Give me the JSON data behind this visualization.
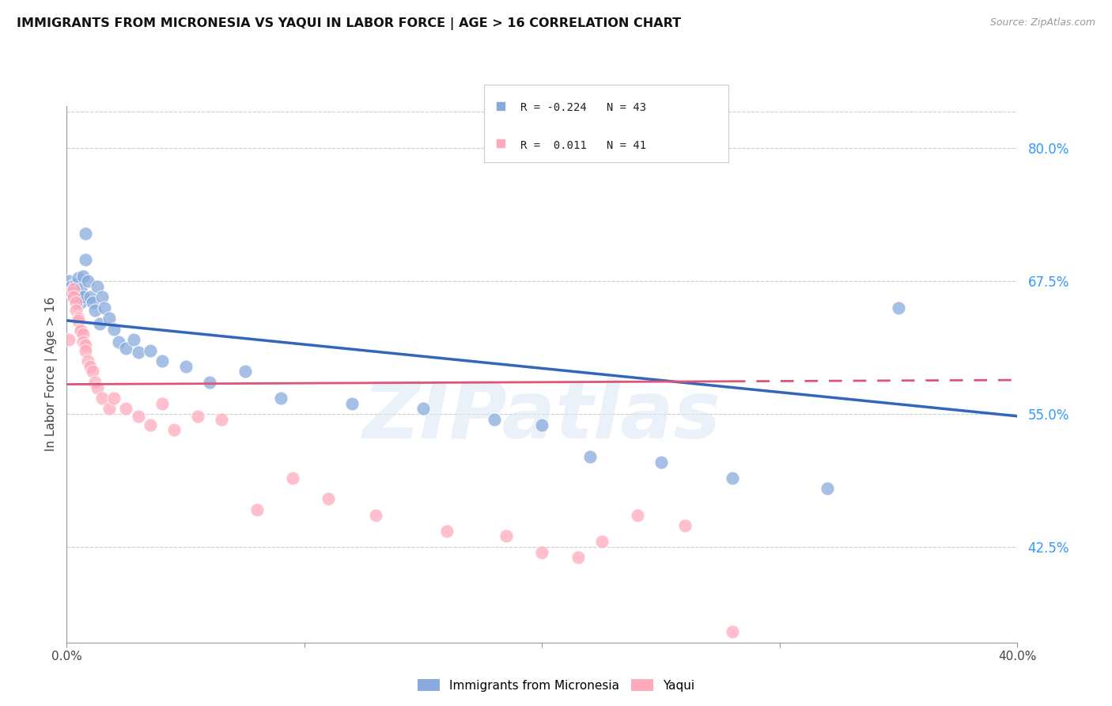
{
  "title": "IMMIGRANTS FROM MICRONESIA VS YAQUI IN LABOR FORCE | AGE > 16 CORRELATION CHART",
  "source": "Source: ZipAtlas.com",
  "ylabel": "In Labor Force | Age > 16",
  "xlim": [
    0.0,
    0.4
  ],
  "ylim": [
    0.335,
    0.84
  ],
  "ytick_labels_right": [
    "80.0%",
    "67.5%",
    "55.0%",
    "42.5%"
  ],
  "ytick_values_right": [
    0.8,
    0.675,
    0.55,
    0.425
  ],
  "blue_label": "Immigrants from Micronesia",
  "pink_label": "Yaqui",
  "blue_R": -0.224,
  "blue_N": 43,
  "pink_R": 0.011,
  "pink_N": 41,
  "blue_color": "#88aadd",
  "pink_color": "#ffaabb",
  "blue_line_color": "#3366bb",
  "pink_line_color": "#dd5577",
  "watermark": "ZIPatlas",
  "blue_scatter_x": [
    0.001,
    0.002,
    0.003,
    0.003,
    0.004,
    0.004,
    0.005,
    0.005,
    0.006,
    0.006,
    0.007,
    0.007,
    0.008,
    0.008,
    0.009,
    0.01,
    0.011,
    0.012,
    0.013,
    0.014,
    0.015,
    0.016,
    0.018,
    0.02,
    0.022,
    0.025,
    0.028,
    0.03,
    0.035,
    0.04,
    0.05,
    0.06,
    0.075,
    0.09,
    0.12,
    0.15,
    0.18,
    0.2,
    0.22,
    0.25,
    0.28,
    0.32,
    0.35
  ],
  "blue_scatter_y": [
    0.675,
    0.67,
    0.668,
    0.66,
    0.672,
    0.665,
    0.678,
    0.658,
    0.668,
    0.655,
    0.68,
    0.66,
    0.72,
    0.695,
    0.675,
    0.66,
    0.655,
    0.648,
    0.67,
    0.635,
    0.66,
    0.65,
    0.64,
    0.63,
    0.618,
    0.612,
    0.62,
    0.608,
    0.61,
    0.6,
    0.595,
    0.58,
    0.59,
    0.565,
    0.56,
    0.555,
    0.545,
    0.54,
    0.51,
    0.505,
    0.49,
    0.48,
    0.65
  ],
  "pink_scatter_x": [
    0.001,
    0.002,
    0.003,
    0.003,
    0.004,
    0.004,
    0.005,
    0.005,
    0.006,
    0.006,
    0.007,
    0.007,
    0.008,
    0.008,
    0.009,
    0.01,
    0.011,
    0.012,
    0.013,
    0.015,
    0.018,
    0.02,
    0.025,
    0.03,
    0.035,
    0.04,
    0.045,
    0.055,
    0.065,
    0.08,
    0.095,
    0.11,
    0.13,
    0.16,
    0.185,
    0.2,
    0.215,
    0.225,
    0.24,
    0.26,
    0.28
  ],
  "pink_scatter_y": [
    0.62,
    0.665,
    0.668,
    0.66,
    0.655,
    0.648,
    0.64,
    0.638,
    0.63,
    0.628,
    0.625,
    0.618,
    0.615,
    0.61,
    0.6,
    0.595,
    0.59,
    0.58,
    0.575,
    0.565,
    0.555,
    0.565,
    0.555,
    0.548,
    0.54,
    0.56,
    0.535,
    0.548,
    0.545,
    0.46,
    0.49,
    0.47,
    0.455,
    0.44,
    0.435,
    0.42,
    0.415,
    0.43,
    0.455,
    0.445,
    0.345
  ],
  "blue_trend_x": [
    0.0,
    0.4
  ],
  "blue_trend_y": [
    0.638,
    0.548
  ],
  "pink_trend_x": [
    0.0,
    0.4
  ],
  "pink_trend_y": [
    0.578,
    0.582
  ]
}
